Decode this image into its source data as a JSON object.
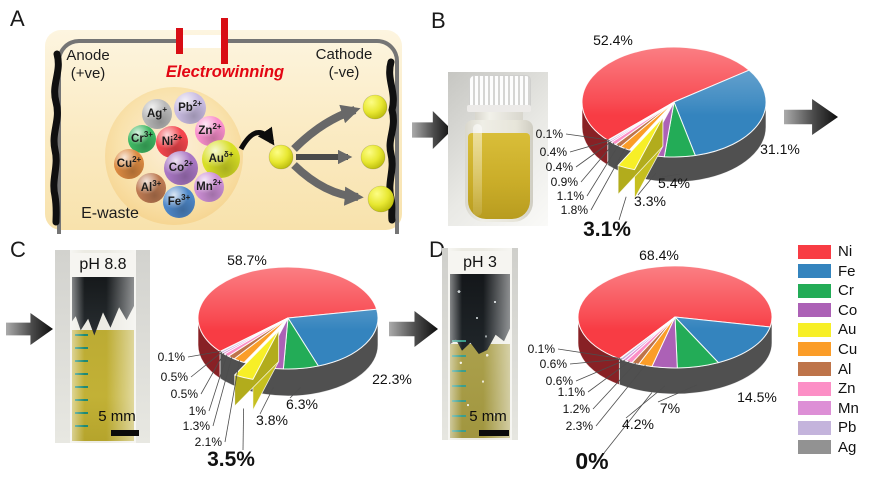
{
  "figure": {
    "panel_a": {
      "label": "A",
      "anode_line1": "Anode",
      "anode_line2": "(+ve)",
      "cathode_line1": "Cathode",
      "cathode_line2": "(-ve)",
      "process_label": "Electrowinning",
      "source_label": "E-waste",
      "ions": [
        {
          "symbol": "Ag",
          "charge": "+",
          "color": "#b9b9b9"
        },
        {
          "symbol": "Pb",
          "charge": "2+",
          "color": "#c9bce2"
        },
        {
          "symbol": "Zn",
          "charge": "2+",
          "color": "#f98fcc"
        },
        {
          "symbol": "Cr",
          "charge": "3+",
          "color": "#3fb863"
        },
        {
          "symbol": "Ni",
          "charge": "2+",
          "color": "#f4464d"
        },
        {
          "symbol": "Au",
          "charge": "δ+",
          "color": "#d8df25"
        },
        {
          "symbol": "Cu",
          "charge": "2+",
          "color": "#dc8a41"
        },
        {
          "symbol": "Co",
          "charge": "2+",
          "color": "#a977c4"
        },
        {
          "symbol": "Al",
          "charge": "3+",
          "color": "#bd7a52"
        },
        {
          "symbol": "Mn",
          "charge": "2+",
          "color": "#ce90d7"
        },
        {
          "symbol": "Fe",
          "charge": "3+",
          "color": "#4e88c9"
        }
      ]
    },
    "panel_b": {
      "label": "B"
    },
    "panel_c": {
      "label": "C",
      "photo_label": "pH 8.8",
      "scale_label": "5 mm"
    },
    "panel_d": {
      "label": "D",
      "photo_label": "pH 3",
      "scale_label": "5 mm"
    }
  },
  "colors": {
    "Ni": "#F83C44",
    "Fe": "#3484BE",
    "Cr": "#23AC57",
    "Co": "#AC61B6",
    "Au": "#F7EF27",
    "Cu": "#FB9D28",
    "Al": "#BE744A",
    "Zn": "#FC8FC6",
    "Mn": "#DD8FD6",
    "Pb": "#C4B4DC",
    "Ag": "#929292"
  },
  "legend": {
    "position": "right",
    "items": [
      "Ni",
      "Fe",
      "Cr",
      "Co",
      "Au",
      "Cu",
      "Al",
      "Zn",
      "Mn",
      "Pb",
      "Ag"
    ]
  },
  "chart_data": [
    {
      "type": "pie",
      "panel": "B",
      "style": "3d-pie",
      "exploded_slice": "Au",
      "categories": [
        "Ni",
        "Fe",
        "Cr",
        "Co",
        "Au",
        "Cu",
        "Al",
        "Zn",
        "Mn",
        "Pb",
        "Ag"
      ],
      "values": [
        52.4,
        31.1,
        5.4,
        3.3,
        3.1,
        1.8,
        1.1,
        0.9,
        0.4,
        0.4,
        0.1
      ],
      "slice_labels": [
        "52.4%",
        "31.1%",
        "5.4%",
        "3.3%",
        "3.1%",
        "1.8%",
        "1.1%",
        "0.9%",
        "0.4%",
        "0.4%",
        "0.1%"
      ],
      "emphasized_label": "3.1%",
      "legend_position": "right"
    },
    {
      "type": "pie",
      "panel": "C",
      "style": "3d-pie",
      "exploded_slice": "Au",
      "categories": [
        "Ni",
        "Fe",
        "Cr",
        "Co",
        "Au",
        "Cu",
        "Al",
        "Zn",
        "Mn",
        "Pb",
        "Ag"
      ],
      "values": [
        58.7,
        22.3,
        6.3,
        3.8,
        3.5,
        2.1,
        1.3,
        1,
        0.5,
        0.5,
        0.1
      ],
      "slice_labels": [
        "58.7%",
        "22.3%",
        "6.3%",
        "3.8%",
        "3.5%",
        "2.1%",
        "1.3%",
        "1%",
        "0.5%",
        "0.5%",
        "0.1%"
      ],
      "emphasized_label": "3.5%",
      "legend_position": "right"
    },
    {
      "type": "pie",
      "panel": "D",
      "style": "3d-pie",
      "exploded_slice": null,
      "categories": [
        "Ni",
        "Fe",
        "Cr",
        "Co",
        "Au",
        "Cu",
        "Al",
        "Zn",
        "Mn",
        "Pb",
        "Ag"
      ],
      "values": [
        68.4,
        14.5,
        7,
        4.2,
        0,
        2.3,
        1.2,
        1.1,
        0.6,
        0.6,
        0.1
      ],
      "slice_labels": [
        "68.4%",
        "14.5%",
        "7%",
        "4.2%",
        "0%",
        "2.3%",
        "1.2%",
        "1.1%",
        "0.6%",
        "0.6%",
        "0.1%"
      ],
      "emphasized_label": "0%",
      "legend_position": "right"
    }
  ]
}
